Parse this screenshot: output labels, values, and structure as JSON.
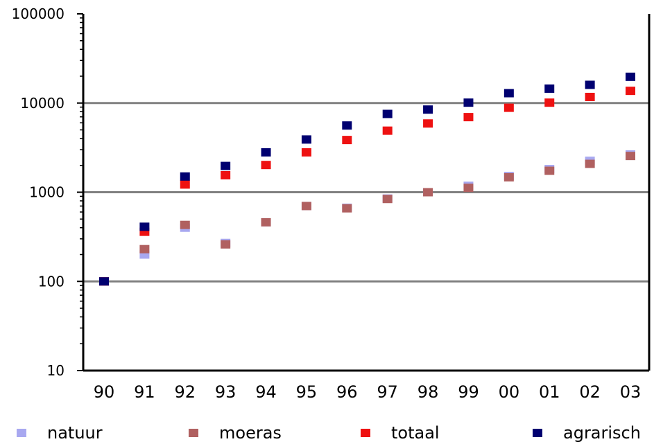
{
  "chart_data": {
    "type": "scatter",
    "title": "",
    "xlabel": "",
    "ylabel": "",
    "yscale": "log",
    "ylim": [
      10,
      100000
    ],
    "yticks": [
      "10",
      "100",
      "1000",
      "10000",
      "100000"
    ],
    "categories": [
      "90",
      "91",
      "92",
      "93",
      "94",
      "95",
      "96",
      "97",
      "98",
      "99",
      "00",
      "01",
      "02",
      "03"
    ],
    "grid": "horizontal major lines",
    "legend_position": "bottom",
    "series": [
      {
        "name": "natuur",
        "color": "#a8a8f0",
        "values": [
          100,
          200,
          400,
          270,
          460,
          700,
          670,
          850,
          1000,
          1180,
          1520,
          1820,
          2250,
          2650
        ]
      },
      {
        "name": "moeras",
        "color": "#b06060",
        "values": [
          100,
          230,
          430,
          260,
          460,
          700,
          660,
          840,
          1000,
          1120,
          1470,
          1740,
          2080,
          2550
        ]
      },
      {
        "name": "totaal",
        "color": "#ee1111",
        "values": [
          100,
          360,
          1220,
          1550,
          2020,
          2800,
          3850,
          4900,
          5900,
          6950,
          8850,
          10100,
          11700,
          13700
        ]
      },
      {
        "name": "agrarisch",
        "color": "#000070",
        "values": [
          100,
          410,
          1500,
          1970,
          2800,
          3900,
          5600,
          7550,
          8450,
          10100,
          12900,
          14500,
          16000,
          19700
        ]
      }
    ]
  }
}
